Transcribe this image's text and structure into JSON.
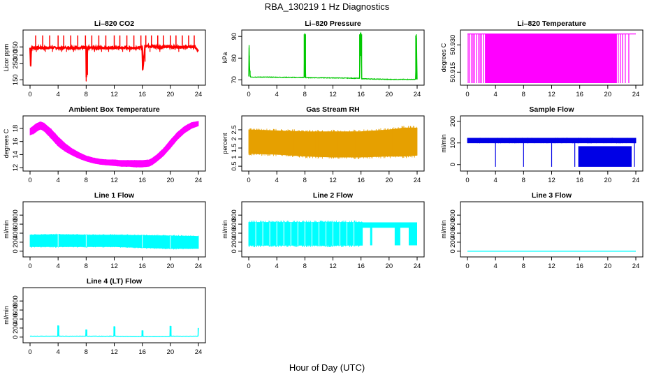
{
  "figure": {
    "title": "RBA_130219  1 Hz Diagnostics",
    "xlabel": "Hour of Day (UTC)"
  },
  "chart_data": [
    {
      "type": "line",
      "title": "Li–820 CO2",
      "ylabel": "Licor ppm",
      "color": "#ff0000",
      "xlim": [
        0,
        24
      ],
      "x_ticks": [
        0,
        4,
        8,
        12,
        16,
        20,
        24
      ],
      "ylim": [
        130,
        440
      ],
      "y_ticks": [
        150,
        250,
        300,
        350
      ],
      "baseline": 345,
      "noise": 10,
      "x": [
        0,
        0.1,
        0.15,
        0.2,
        0.3,
        1.0,
        2.0,
        3.0,
        4.0,
        5.0,
        6.0,
        7.0,
        8.0,
        8.01,
        8.2,
        9.0,
        10.0,
        11.0,
        12.0,
        13.0,
        14.0,
        15.0,
        16.0,
        16.05,
        16.4,
        17.0,
        18.0,
        19.0,
        20.0,
        21.0,
        22.0,
        23.0,
        23.5,
        24
      ],
      "y": [
        345,
        230,
        330,
        345,
        345,
        345,
        345,
        345,
        345,
        345,
        345,
        345,
        345,
        140,
        345,
        345,
        345,
        345,
        345,
        345,
        345,
        345,
        345,
        205,
        360,
        355,
        350,
        350,
        350,
        350,
        350,
        350,
        350,
        320
      ],
      "spikes": [
        0.8,
        1.8,
        2.8,
        4.0,
        4.8,
        5.8,
        6.8,
        7.9,
        8.8,
        9.8,
        10.8,
        12.0,
        12.8,
        13.8,
        14.8,
        15.8,
        16.5,
        17.3,
        18.2,
        19.0,
        20.0,
        20.8,
        21.7,
        22.6,
        23.4
      ],
      "spike_top": 420,
      "dips": [
        0.9,
        2.2,
        3.2,
        4.5,
        5.2,
        6.2,
        9.2,
        10.2,
        11.2,
        13.2,
        14.2,
        17.1,
        18.5,
        21.2
      ],
      "dip_bottom": 320
    },
    {
      "type": "line",
      "title": "Li–820 Pressure",
      "ylabel": "kPa",
      "color": "#00c800",
      "xlim": [
        0,
        24
      ],
      "x_ticks": [
        0,
        4,
        8,
        12,
        16,
        20,
        24
      ],
      "ylim": [
        68.5,
        92
      ],
      "y_ticks": [
        70,
        80,
        90
      ],
      "x": [
        0,
        0.05,
        0.1,
        0.2,
        0.3,
        4,
        7.9,
        8.0,
        8.1,
        12,
        15.8,
        15.9,
        16.0,
        16.1,
        20,
        23.8,
        23.9,
        24
      ],
      "y": [
        71.5,
        86,
        77,
        71.5,
        71.3,
        71.2,
        71.1,
        91.5,
        71.0,
        70.9,
        70.7,
        91.5,
        91.5,
        70.5,
        70.2,
        70.2,
        91,
        70.3
      ],
      "noise": 0.2
    },
    {
      "type": "band",
      "title": "Li–820 Temperature",
      "ylabel": "degrees C",
      "color": "#ff00ff",
      "xlim": [
        0,
        24
      ],
      "x_ticks": [
        0,
        4,
        8,
        12,
        16,
        20,
        24
      ],
      "ylim": [
        50.909,
        50.937
      ],
      "y_ticks": [
        50.915,
        50.93
      ],
      "y_tick_labels": [
        "50.915",
        "50.930"
      ],
      "level_low": 50.909,
      "level_high": 50.936,
      "fill_from": 2.5,
      "fill_to": 21.3,
      "lines": [
        0.1,
        0.3,
        0.6,
        0.8,
        1.0,
        1.3,
        1.6,
        1.8,
        2.0,
        2.3,
        21.5,
        21.8,
        22.1,
        22.5,
        23.0
      ]
    },
    {
      "type": "band",
      "title": "Ambient Box Temperature",
      "ylabel": "degrees C",
      "color": "#ff00ff",
      "xlim": [
        0,
        24
      ],
      "x_ticks": [
        0,
        4,
        8,
        12,
        16,
        20,
        24
      ],
      "ylim": [
        11.8,
        19.6
      ],
      "y_ticks": [
        12,
        14,
        16,
        18
      ],
      "x": [
        0,
        0.5,
        1,
        1.5,
        2,
        3,
        4,
        5,
        6,
        7,
        8,
        9,
        10,
        11,
        12,
        13,
        14,
        15,
        16,
        17,
        17.5,
        18,
        19,
        20,
        21,
        22,
        23,
        24
      ],
      "lo": [
        17.0,
        17.2,
        17.6,
        17.9,
        17.6,
        16.5,
        15.3,
        14.5,
        13.9,
        13.4,
        13.0,
        12.7,
        12.5,
        12.4,
        12.3,
        12.2,
        12.2,
        12.1,
        12.1,
        12.2,
        12.5,
        12.9,
        13.8,
        15.0,
        16.3,
        17.3,
        18.0,
        18.4
      ],
      "hi": [
        18.0,
        18.4,
        18.8,
        19.0,
        18.8,
        17.9,
        16.7,
        15.7,
        14.9,
        14.3,
        13.8,
        13.5,
        13.3,
        13.2,
        13.2,
        13.1,
        13.1,
        13.1,
        13.1,
        13.2,
        13.5,
        13.9,
        14.9,
        16.2,
        17.4,
        18.3,
        18.9,
        19.1
      ]
    },
    {
      "type": "band",
      "title": "Gas Stream RH",
      "ylabel": "percent",
      "color": "#e6a000",
      "xlim": [
        0,
        24
      ],
      "x_ticks": [
        0,
        4,
        8,
        12,
        16,
        20,
        24
      ],
      "ylim": [
        0.35,
        3.15
      ],
      "y_ticks": [
        0.5,
        1.0,
        1.5,
        2.0,
        2.5
      ],
      "y_tick_labels": [
        "0.5",
        "1",
        "1.5",
        "2",
        "2.5"
      ],
      "x": [
        0,
        4,
        8,
        12,
        16,
        20,
        22,
        24
      ],
      "lo": [
        1.2,
        1.15,
        1.05,
        1.0,
        1.0,
        1.05,
        1.05,
        1.1
      ],
      "hi": [
        2.5,
        2.45,
        2.4,
        2.4,
        2.4,
        2.5,
        2.6,
        2.6
      ]
    },
    {
      "type": "band",
      "title": "Sample Flow",
      "ylabel": "ml/min",
      "color": "#0000e6",
      "xlim": [
        0,
        24
      ],
      "x_ticks": [
        0,
        4,
        8,
        12,
        16,
        20,
        24
      ],
      "ylim": [
        -20,
        215
      ],
      "y_ticks": [
        0,
        100,
        200
      ],
      "x": [
        0,
        24
      ],
      "lo": [
        100,
        100
      ],
      "hi": [
        122,
        122
      ],
      "gap_from": 15.8,
      "gap_to": 23.4,
      "gap_lo": -10,
      "gap_hi": 85,
      "drops": [
        4.0,
        8.0,
        12.0,
        15.3,
        23.8
      ],
      "drop_bottom": -10
    },
    {
      "type": "band",
      "title": "Line 1 Flow",
      "ylabel": "ml/min",
      "color": "#00ffff",
      "xlim": [
        0,
        24
      ],
      "x_ticks": [
        0,
        4,
        8,
        12,
        16,
        20,
        24
      ],
      "ylim": [
        -80,
        1050
      ],
      "y_ticks": [
        0,
        200,
        400,
        600,
        800
      ],
      "x": [
        0,
        4,
        8,
        12,
        16,
        20,
        24
      ],
      "lo": [
        100,
        100,
        100,
        100,
        80,
        60,
        60
      ],
      "hi": [
        360,
        370,
        360,
        360,
        350,
        340,
        330
      ],
      "notches": [
        4.0,
        8.0,
        16.0,
        20.0
      ]
    },
    {
      "type": "band",
      "title": "Line 2 Flow",
      "ylabel": "ml/min",
      "color": "#00ffff",
      "xlim": [
        0,
        24
      ],
      "x_ticks": [
        0,
        4,
        8,
        12,
        16,
        20,
        24
      ],
      "ylim": [
        -80,
        1050
      ],
      "y_ticks": [
        0,
        200,
        400,
        600,
        800
      ],
      "x": [
        0,
        16.2
      ],
      "lo": [
        130,
        130
      ],
      "hi": [
        640,
        640
      ],
      "gap_from": 16.2,
      "gap_to": 24,
      "gap_lo": 520,
      "gap_hi": 640,
      "blocks": [
        [
          17.3,
          17.6
        ],
        [
          20.8,
          21.6
        ],
        [
          22.8,
          24.0
        ]
      ],
      "block_lo": 130,
      "notches": [
        1.0,
        2.0,
        3.0,
        4.0,
        5.0,
        6.0,
        7.0,
        8.0,
        9.0,
        10.0,
        11.0,
        12.0,
        13.0,
        14.0,
        15.0
      ]
    },
    {
      "type": "line",
      "title": "Line 3 Flow",
      "ylabel": "ml/min",
      "color": "#00ffff",
      "xlim": [
        0,
        24
      ],
      "x_ticks": [
        0,
        4,
        8,
        12,
        16,
        20,
        24
      ],
      "ylim": [
        -80,
        1050
      ],
      "y_ticks": [
        0,
        200,
        400,
        600,
        800
      ],
      "x": [
        0,
        24
      ],
      "y": [
        0,
        0
      ],
      "noise": 0
    },
    {
      "type": "line",
      "title": "Line 4 (LT) Flow",
      "ylabel": "ml/min",
      "color": "#00ffff",
      "xlim": [
        0,
        24
      ],
      "x_ticks": [
        0,
        4,
        8,
        12,
        16,
        20,
        24
      ],
      "ylim": [
        -80,
        1050
      ],
      "y_ticks": [
        0,
        200,
        400,
        600,
        800
      ],
      "x": [
        0,
        3.95,
        4.0,
        4.1,
        7.95,
        8.0,
        8.1,
        11.95,
        12.0,
        12.1,
        15.95,
        16.0,
        16.1,
        19.95,
        20.0,
        20.1,
        23.95,
        24.0
      ],
      "y": [
        20,
        20,
        260,
        20,
        20,
        170,
        20,
        20,
        240,
        20,
        15,
        150,
        15,
        15,
        250,
        20,
        20,
        200
      ],
      "noise": 4
    }
  ]
}
